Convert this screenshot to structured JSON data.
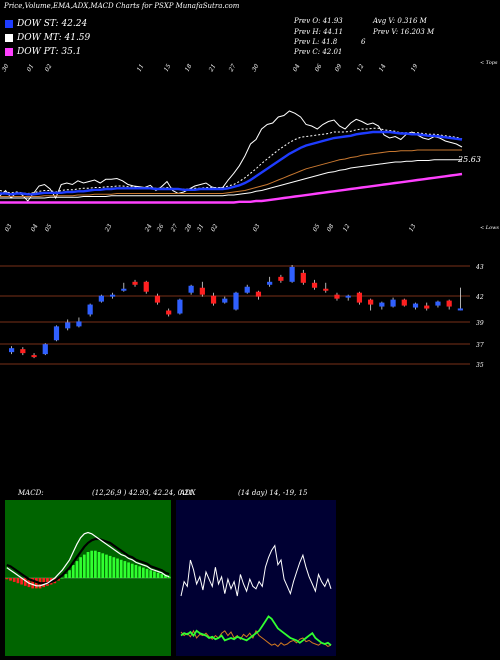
{
  "header": {
    "title": "Price,Volume,EMA,ADX,MACD Charts for PSXP MunafaSutra.com"
  },
  "legend": [
    {
      "label": "DOW ST: 42.24",
      "color": "#1e3cff"
    },
    {
      "label": "DOW MT: 41.59",
      "color": "#ffffff"
    },
    {
      "label": "DOW PT: 35.1",
      "color": "#ff40ff"
    }
  ],
  "stats": {
    "prev_open": "Prev  O: 41.93",
    "prev_high": "Prev  H: 44.11",
    "prev_low": "Prev  L: 41.8",
    "prev_close": "Prev  C: 42.01",
    "avg_vol": "Avg V: 0.316  M",
    "prev_vol": "Prev  V: 16.203  M",
    "low_flag": "6"
  },
  "chart_data": [
    {
      "type": "line",
      "panel": "EMA",
      "corner_label_top": "< Tops",
      "corner_label_bottom": "< Lows",
      "top_date_labels": [
        "30",
        "01",
        "02",
        "11",
        "15",
        "18",
        "21",
        "27",
        "30",
        "04",
        "06",
        "09",
        "12",
        "14",
        "19"
      ],
      "bottom_date_labels": [
        "03",
        "04",
        "05",
        "23",
        "24",
        "26",
        "27",
        "28",
        "31",
        "02",
        "03",
        "05",
        "08",
        "12",
        "13"
      ],
      "price_label": "25.63",
      "series": [
        {
          "color": "#ffffff",
          "values": [
            15,
            22,
            12,
            20,
            16,
            8,
            18,
            28,
            30,
            24,
            12,
            30,
            32,
            30,
            35,
            32,
            34,
            36,
            32,
            37,
            37,
            38,
            35,
            30,
            28,
            27,
            26,
            29,
            22,
            27,
            34,
            22,
            18,
            20,
            24,
            28,
            30,
            32,
            27,
            25,
            26,
            36,
            45,
            55,
            68,
            84,
            90,
            104,
            110,
            112,
            120,
            122,
            128,
            125,
            120,
            110,
            108,
            104,
            110,
            114,
            116,
            108,
            104,
            112,
            117,
            114,
            110,
            112,
            108,
            96,
            92,
            94,
            90,
            97,
            100,
            96,
            92,
            90,
            94,
            92,
            88,
            86,
            84,
            80
          ]
        },
        {
          "color": "#ffffff",
          "values": [
            22,
            20,
            19,
            20,
            19,
            18,
            19,
            21,
            22,
            22,
            20,
            22,
            23,
            23,
            24,
            25,
            25,
            26,
            26,
            27,
            27,
            28,
            28,
            27,
            27,
            26,
            26,
            26,
            25,
            25,
            26,
            25,
            24,
            24,
            24,
            25,
            25,
            26,
            26,
            26,
            26,
            28,
            30,
            34,
            39,
            45,
            51,
            58,
            64,
            70,
            76,
            81,
            86,
            90,
            93,
            94,
            95,
            96,
            97,
            98,
            100,
            100,
            100,
            101,
            103,
            104,
            104,
            105,
            105,
            103,
            102,
            101,
            99,
            99,
            99,
            99,
            98,
            97,
            97,
            96,
            95,
            94,
            93,
            91
          ]
        },
        {
          "color": "#1e3cff",
          "values": [
            18,
            18,
            17,
            18,
            18,
            17,
            17,
            18,
            19,
            19,
            19,
            19,
            20,
            20,
            21,
            21,
            22,
            23,
            23,
            24,
            24,
            25,
            25,
            25,
            25,
            25,
            25,
            25,
            24,
            24,
            24,
            24,
            24,
            23,
            23,
            23,
            24,
            24,
            24,
            24,
            24,
            25,
            27,
            29,
            32,
            36,
            41,
            46,
            51,
            56,
            61,
            66,
            71,
            75,
            79,
            82,
            84,
            86,
            88,
            90,
            92,
            93,
            94,
            95,
            97,
            98,
            99,
            100,
            100,
            100,
            100,
            99,
            98,
            98,
            97,
            97,
            96,
            95,
            95,
            94,
            93,
            92,
            91,
            90
          ]
        },
        {
          "color": "#c87830",
          "values": [
            14,
            14,
            14,
            14,
            14,
            14,
            14,
            14,
            15,
            15,
            15,
            15,
            15,
            15,
            16,
            16,
            16,
            17,
            17,
            17,
            17,
            18,
            18,
            18,
            18,
            18,
            18,
            18,
            18,
            18,
            18,
            18,
            18,
            18,
            18,
            18,
            18,
            18,
            18,
            18,
            18,
            19,
            20,
            21,
            22,
            24,
            26,
            28,
            30,
            33,
            36,
            39,
            42,
            45,
            48,
            51,
            53,
            55,
            57,
            59,
            61,
            63,
            64,
            66,
            67,
            69,
            70,
            71,
            72,
            73,
            74,
            74,
            75,
            75,
            75,
            76,
            76,
            76,
            76,
            76,
            76,
            76,
            76,
            76
          ]
        },
        {
          "color": "#ffffff",
          "values": [
            12,
            12,
            12,
            12,
            12,
            12,
            12,
            12,
            12,
            13,
            13,
            13,
            13,
            13,
            13,
            14,
            14,
            14,
            14,
            14,
            15,
            15,
            15,
            15,
            15,
            15,
            15,
            15,
            15,
            15,
            15,
            15,
            15,
            15,
            15,
            15,
            15,
            15,
            15,
            15,
            15,
            16,
            16,
            17,
            18,
            19,
            21,
            22,
            24,
            26,
            28,
            30,
            32,
            34,
            36,
            38,
            40,
            42,
            44,
            46,
            47,
            49,
            50,
            52,
            53,
            54,
            55,
            56,
            57,
            58,
            59,
            60,
            60,
            61,
            61,
            62,
            62,
            62,
            63,
            63,
            63,
            63,
            63,
            63
          ]
        },
        {
          "color": "#ff40ff",
          "values": [
            6,
            6,
            6,
            6,
            6,
            6,
            6,
            6,
            6,
            6,
            6,
            6,
            6,
            6,
            6,
            6,
            6,
            6,
            6,
            6,
            6,
            6,
            6,
            6,
            6,
            6,
            6,
            6,
            6,
            6,
            6,
            6,
            6,
            6,
            6,
            6,
            6,
            6,
            6,
            6,
            6,
            6,
            6,
            7,
            7,
            7,
            8,
            8,
            9,
            10,
            11,
            12,
            13,
            14,
            15,
            16,
            17,
            18,
            19,
            20,
            21,
            22,
            23,
            24,
            25,
            26,
            27,
            28,
            29,
            30,
            31,
            32,
            33,
            34,
            35,
            36,
            37,
            38,
            39,
            40,
            41,
            42,
            43,
            44
          ]
        }
      ]
    },
    {
      "type": "candlestick",
      "panel": "price",
      "y_labels": [
        "43",
        "42",
        "39",
        "37",
        "35"
      ],
      "candles": [
        {
          "o": 37.6,
          "c": 38.0,
          "h": 38.2,
          "l": 37.4,
          "up": true
        },
        {
          "o": 37.9,
          "c": 37.5,
          "h": 38.1,
          "l": 37.3,
          "up": false
        },
        {
          "o": 37.3,
          "c": 37.1,
          "h": 37.5,
          "l": 37.0,
          "up": false
        },
        {
          "o": 37.4,
          "c": 38.4,
          "h": 38.5,
          "l": 37.3,
          "up": true
        },
        {
          "o": 38.8,
          "c": 40.2,
          "h": 40.3,
          "l": 38.7,
          "up": true
        },
        {
          "o": 40.0,
          "c": 40.6,
          "h": 40.9,
          "l": 39.8,
          "up": true
        },
        {
          "o": 40.2,
          "c": 40.7,
          "h": 41.1,
          "l": 40.1,
          "up": true
        },
        {
          "o": 41.4,
          "c": 42.4,
          "h": 42.5,
          "l": 41.2,
          "up": true
        },
        {
          "o": 42.7,
          "c": 43.3,
          "h": 43.4,
          "l": 42.6,
          "up": true
        },
        {
          "o": 43.2,
          "c": 43.4,
          "h": 43.6,
          "l": 43.0,
          "up": true
        },
        {
          "o": 43.8,
          "c": 44.0,
          "h": 44.6,
          "l": 43.7,
          "up": true
        },
        {
          "o": 44.7,
          "c": 44.4,
          "h": 44.9,
          "l": 44.2,
          "up": false
        },
        {
          "o": 44.7,
          "c": 43.7,
          "h": 44.8,
          "l": 43.5,
          "up": false
        },
        {
          "o": 43.3,
          "c": 42.6,
          "h": 43.5,
          "l": 42.4,
          "up": false
        },
        {
          "o": 41.8,
          "c": 41.4,
          "h": 42.0,
          "l": 41.2,
          "up": false
        },
        {
          "o": 41.5,
          "c": 42.9,
          "h": 43.0,
          "l": 41.4,
          "up": true
        },
        {
          "o": 43.6,
          "c": 44.3,
          "h": 44.4,
          "l": 43.4,
          "up": true
        },
        {
          "o": 44.1,
          "c": 43.4,
          "h": 44.7,
          "l": 43.2,
          "up": false
        },
        {
          "o": 43.3,
          "c": 42.5,
          "h": 43.6,
          "l": 42.3,
          "up": false
        },
        {
          "o": 42.6,
          "c": 43.0,
          "h": 43.2,
          "l": 42.5,
          "up": true
        },
        {
          "o": 41.9,
          "c": 43.6,
          "h": 43.7,
          "l": 41.8,
          "up": true
        },
        {
          "o": 43.6,
          "c": 44.2,
          "h": 44.4,
          "l": 43.5,
          "up": true
        },
        {
          "o": 43.7,
          "c": 43.2,
          "h": 43.8,
          "l": 42.9,
          "up": false
        },
        {
          "o": 44.4,
          "c": 44.7,
          "h": 45.2,
          "l": 44.2,
          "up": true
        },
        {
          "o": 45.2,
          "c": 44.8,
          "h": 45.4,
          "l": 44.6,
          "up": false
        },
        {
          "o": 44.7,
          "c": 46.2,
          "h": 46.4,
          "l": 44.6,
          "up": true
        },
        {
          "o": 45.6,
          "c": 44.6,
          "h": 45.9,
          "l": 44.4,
          "up": false
        },
        {
          "o": 44.6,
          "c": 44.1,
          "h": 44.9,
          "l": 43.9,
          "up": false
        },
        {
          "o": 44.0,
          "c": 43.8,
          "h": 44.6,
          "l": 43.6,
          "up": false
        },
        {
          "o": 43.4,
          "c": 43.0,
          "h": 43.6,
          "l": 42.8,
          "up": false
        },
        {
          "o": 43.1,
          "c": 43.3,
          "h": 43.4,
          "l": 42.8,
          "up": true
        },
        {
          "o": 43.6,
          "c": 42.6,
          "h": 43.7,
          "l": 42.4,
          "up": false
        },
        {
          "o": 42.9,
          "c": 42.4,
          "h": 43.0,
          "l": 41.8,
          "up": false
        },
        {
          "o": 42.2,
          "c": 42.6,
          "h": 42.7,
          "l": 41.9,
          "up": true
        },
        {
          "o": 42.2,
          "c": 42.9,
          "h": 43.1,
          "l": 42.1,
          "up": true
        },
        {
          "o": 42.9,
          "c": 42.3,
          "h": 43.0,
          "l": 42.2,
          "up": false
        },
        {
          "o": 42.1,
          "c": 42.5,
          "h": 42.6,
          "l": 41.9,
          "up": true
        },
        {
          "o": 42.3,
          "c": 42.0,
          "h": 42.6,
          "l": 41.8,
          "up": false
        },
        {
          "o": 42.3,
          "c": 42.7,
          "h": 42.8,
          "l": 42.1,
          "up": true
        },
        {
          "o": 42.8,
          "c": 42.2,
          "h": 42.9,
          "l": 41.9,
          "up": false
        },
        {
          "o": 41.93,
          "c": 42.01,
          "h": 44.11,
          "l": 41.8,
          "up": true
        }
      ]
    },
    {
      "type": "line",
      "panel": "MACD",
      "label": "MACD:",
      "params": "(12,26,9 ) 42.93, 42.24, 0.21",
      "histogram": [
        -1,
        -2,
        -3,
        -4,
        -5,
        -6,
        -7,
        -8,
        -8,
        -8,
        -7,
        -6,
        -5,
        -4,
        -2,
        0,
        3,
        6,
        10,
        13,
        16,
        18,
        20,
        21,
        21,
        20,
        19,
        18,
        17,
        16,
        15,
        14,
        13,
        12,
        11,
        10,
        9,
        8,
        7,
        6,
        5,
        4,
        3,
        2,
        1
      ],
      "macd": [
        8,
        6,
        4,
        2,
        0,
        -2,
        -4,
        -5,
        -6,
        -6,
        -5,
        -4,
        -2,
        0,
        3,
        6,
        10,
        14,
        20,
        26,
        31,
        34,
        35,
        34,
        32,
        30,
        28,
        26,
        24,
        22,
        20,
        18,
        17,
        15,
        14,
        12,
        11,
        10,
        9,
        7,
        6,
        5,
        4,
        2,
        1
      ],
      "signal": [
        10,
        9,
        7,
        5,
        3,
        1,
        -1,
        -2,
        -3,
        -4,
        -4,
        -4,
        -3,
        -2,
        0,
        2,
        5,
        8,
        12,
        16,
        20,
        24,
        27,
        29,
        30,
        30,
        29,
        28,
        27,
        25,
        23,
        21,
        19,
        17,
        16,
        14,
        13,
        12,
        11,
        9,
        8,
        7,
        6,
        4,
        3
      ]
    },
    {
      "type": "line",
      "panel": "ADX",
      "label": "ADX",
      "params": "(14  day) 14, -19, 15",
      "series": [
        {
          "name": "ADX",
          "color": "#ffffff",
          "values": [
            50,
            62,
            58,
            80,
            72,
            60,
            66,
            55,
            70,
            64,
            58,
            74,
            60,
            66,
            52,
            64,
            56,
            62,
            50,
            68,
            60,
            54,
            64,
            58,
            56,
            62,
            58,
            74,
            82,
            88,
            92,
            76,
            80,
            64,
            58,
            52,
            62,
            70,
            78,
            84,
            74,
            66,
            60,
            54,
            68,
            62,
            58,
            64,
            56
          ]
        },
        {
          "name": "+DI",
          "color": "#d07820",
          "values": [
            15,
            12,
            14,
            11,
            16,
            10,
            13,
            12,
            14,
            11,
            9,
            12,
            10,
            14,
            16,
            12,
            15,
            10,
            12,
            9,
            13,
            11,
            14,
            10,
            16,
            12,
            10,
            8,
            6,
            4,
            5,
            3,
            6,
            4,
            5,
            7,
            8,
            6,
            9,
            10,
            7,
            8,
            6,
            5,
            4,
            6,
            5,
            3,
            4
          ]
        },
        {
          "name": "-DI",
          "color": "#30ff30",
          "values": [
            12,
            14,
            13,
            15,
            12,
            16,
            14,
            13,
            12,
            10,
            11,
            9,
            10,
            12,
            8,
            9,
            10,
            9,
            11,
            10,
            9,
            8,
            10,
            12,
            14,
            16,
            20,
            24,
            28,
            26,
            22,
            18,
            16,
            14,
            12,
            10,
            9,
            8,
            6,
            8,
            10,
            12,
            14,
            10,
            8,
            6,
            5,
            6,
            4
          ]
        }
      ]
    }
  ]
}
